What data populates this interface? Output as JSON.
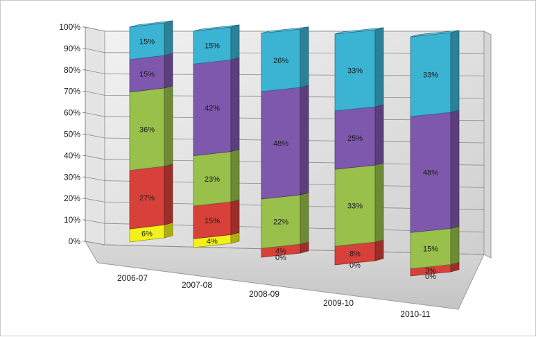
{
  "chart_data": {
    "type": "bar",
    "subtype": "3d-stacked-percent",
    "title": "",
    "xlabel": "",
    "ylabel": "",
    "ylim": [
      0,
      100
    ],
    "yticks": [
      "0%",
      "10%",
      "20%",
      "30%",
      "40%",
      "50%",
      "60%",
      "70%",
      "80%",
      "90%",
      "100%"
    ],
    "categories": [
      "2006-07",
      "2007-08",
      "2008-09",
      "2009-10",
      "2010-11"
    ],
    "series": [
      {
        "color": "#f2f21a",
        "values": [
          6,
          4,
          0,
          0,
          0
        ]
      },
      {
        "color": "#d8403a",
        "values": [
          27,
          15,
          4,
          8,
          3
        ]
      },
      {
        "color": "#98c04a",
        "values": [
          36,
          23,
          22,
          33,
          15
        ]
      },
      {
        "color": "#7e58ad",
        "values": [
          15,
          42,
          48,
          25,
          48
        ]
      },
      {
        "color": "#3bb3d3",
        "values": [
          15,
          15,
          26,
          33,
          33
        ]
      }
    ],
    "data_labels": [
      [
        "6%",
        "4%",
        "0%",
        "0%",
        "0%"
      ],
      [
        "27%",
        "15%",
        "4%",
        "8%",
        "3%"
      ],
      [
        "36%",
        "23%",
        "22%",
        "33%",
        "15%"
      ],
      [
        "15%",
        "42%",
        "48%",
        "25%",
        "48%"
      ],
      [
        "15%",
        "15%",
        "26%",
        "33%",
        "33%"
      ]
    ],
    "grid": true,
    "legend": "none"
  }
}
